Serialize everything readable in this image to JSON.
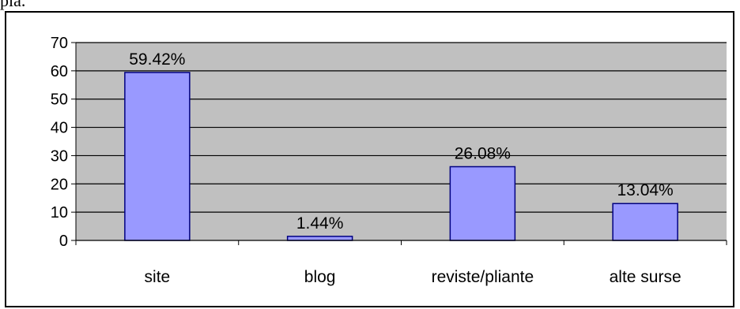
{
  "page": {
    "top_text": "pla."
  },
  "chart_data": {
    "type": "bar",
    "categories": [
      "site",
      "blog",
      "reviste/pliante",
      "alte surse"
    ],
    "values": [
      59.42,
      1.44,
      26.08,
      13.04
    ],
    "data_labels": [
      "59.42%",
      "1.44%",
      "26.08%",
      "13.04%"
    ],
    "title": "",
    "xlabel": "",
    "ylabel": "",
    "ylim": [
      0,
      70
    ],
    "yticks": [
      0,
      10,
      20,
      30,
      40,
      50,
      60,
      70
    ],
    "grid": "horizontal",
    "legend": "none",
    "colors": {
      "bar_fill": "#9999ff",
      "bar_stroke": "#000080",
      "plot_background": "#c0c0c0",
      "grid": "#000000"
    }
  }
}
